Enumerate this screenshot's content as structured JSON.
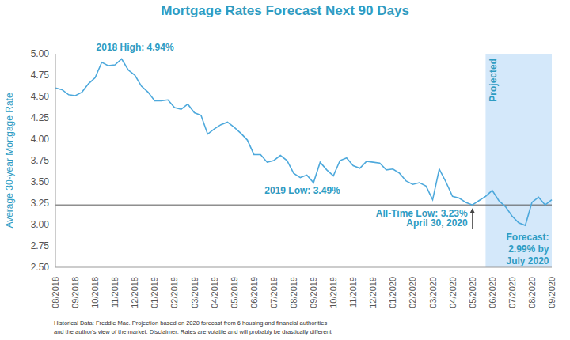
{
  "chart_data": {
    "type": "line",
    "title": "Mortgage Rates Forecast Next 90 Days",
    "y_label": "Average 30-year Mortgage Rate",
    "footnote": [
      "Historical Data: Freddie Mac.  Projection based on 2020 forecast from 6 housing and financial authorities",
      "and the author's view of the market. Disclaimer: Rates are volatile and will probably be drastically different"
    ],
    "categories": [
      "08/2018",
      null,
      null,
      "09/2018",
      null,
      null,
      "10/2018",
      null,
      null,
      "11/2018",
      null,
      null,
      "12/2018",
      null,
      null,
      "01/2019",
      null,
      null,
      "02/2019",
      null,
      null,
      "03/2019",
      null,
      null,
      "04/2019",
      null,
      null,
      "05/2019",
      null,
      null,
      "06/2019",
      null,
      null,
      "07/2019",
      null,
      null,
      "08/2019",
      null,
      null,
      "09/2019",
      null,
      null,
      "10/2019",
      null,
      null,
      "11/2019",
      null,
      null,
      "12/2019",
      null,
      null,
      "01/2020",
      null,
      null,
      "02/2020",
      null,
      null,
      "03/2020",
      null,
      null,
      "04/2020",
      null,
      null,
      "05/2020",
      null,
      null,
      "06/2020",
      null,
      null,
      "07/2020",
      null,
      null,
      "08/2020",
      null,
      null,
      "09/2020"
    ],
    "values": [
      4.6,
      4.58,
      4.52,
      4.51,
      4.55,
      4.65,
      4.72,
      4.9,
      4.86,
      4.87,
      4.94,
      4.81,
      4.75,
      4.62,
      4.55,
      4.45,
      4.45,
      4.46,
      4.37,
      4.35,
      4.41,
      4.31,
      4.28,
      4.06,
      4.12,
      4.17,
      4.2,
      4.14,
      4.07,
      3.99,
      3.82,
      3.82,
      3.73,
      3.75,
      3.81,
      3.75,
      3.6,
      3.55,
      3.58,
      3.49,
      3.73,
      3.64,
      3.57,
      3.75,
      3.78,
      3.69,
      3.66,
      3.74,
      3.73,
      3.72,
      3.64,
      3.65,
      3.6,
      3.51,
      3.47,
      3.49,
      3.45,
      3.29,
      3.65,
      3.5,
      3.33,
      3.31,
      3.26,
      3.23,
      3.28,
      3.33,
      3.4,
      3.28,
      3.21,
      3.1,
      3.02,
      2.99,
      3.26,
      3.32,
      3.23,
      3.29
    ],
    "color": "#4ea9dc",
    "marker": "none",
    "line_style": "solid",
    "ylim": [
      2.5,
      5.0
    ],
    "yticks": [
      {
        "value": 2.5,
        "label": "2.50"
      },
      {
        "value": 2.75,
        "label": "2.75"
      },
      {
        "value": 3.0,
        "label": "3.00"
      },
      {
        "value": 3.25,
        "label": "3.25"
      },
      {
        "value": 3.5,
        "label": "3.50"
      },
      {
        "value": 3.75,
        "label": "3.75"
      },
      {
        "value": 4.0,
        "label": "4.00"
      },
      {
        "value": 4.25,
        "label": "4.25"
      },
      {
        "value": 4.5,
        "label": "4.50"
      },
      {
        "value": 4.75,
        "label": "4.75"
      },
      {
        "value": 5.0,
        "label": "5.00"
      }
    ],
    "grid": false,
    "reference_line": {
      "value": 3.23,
      "color": "#555555"
    },
    "shaded_region": {
      "label": "Projected",
      "x_start": 65,
      "x_end": 75,
      "color": "#d4e8fa"
    },
    "annotations": [
      {
        "text": [
          "2018 High: 4.94%"
        ],
        "x": 10,
        "y": 4.94
      },
      {
        "text": [
          "2019 Low: 3.49%"
        ],
        "x": 39,
        "y": 3.49
      },
      {
        "text": [
          "All-Time Low: 3.23%",
          "April 30, 2020"
        ],
        "x": 63,
        "y": 3.23
      },
      {
        "text": [
          "Forecast:",
          "2.99% by",
          "July 2020"
        ],
        "x": 71,
        "y": 2.99
      }
    ]
  }
}
